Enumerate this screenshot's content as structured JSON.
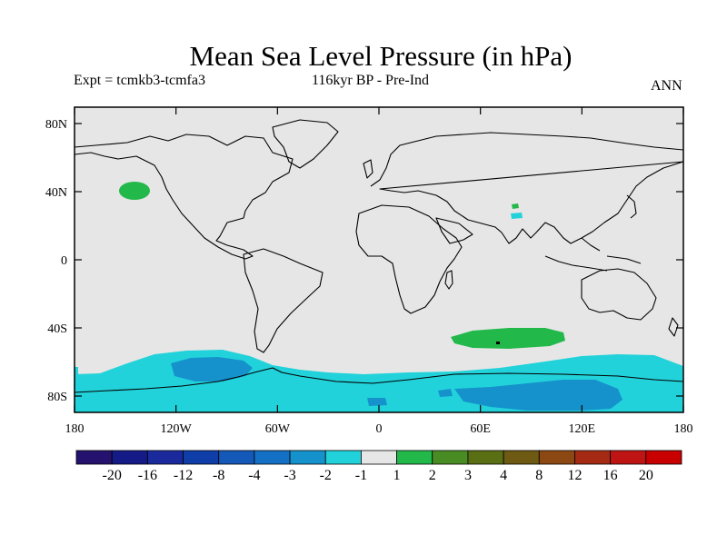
{
  "title": "Mean Sea Level Pressure (in hPa)",
  "subtitle_left": "Expt = tcmkb3-tcmfa3",
  "subtitle_center": "116kyr BP - Pre-Ind",
  "subtitle_right": "ANN",
  "lat_ticks": [
    "80N",
    "40N",
    "0",
    "40S",
    "80S"
  ],
  "lon_ticks": [
    "180",
    "120W",
    "60W",
    "0",
    "60E",
    "120E",
    "180"
  ],
  "colorbar": {
    "labels": [
      "-20",
      "-16",
      "-12",
      "-8",
      "-4",
      "-3",
      "-2",
      "-1",
      "1",
      "2",
      "3",
      "4",
      "8",
      "12",
      "16",
      "20"
    ],
    "colors": [
      "#24126e",
      "#141a86",
      "#1a2a9c",
      "#0f3ea8",
      "#1458b8",
      "#1470c4",
      "#1592cc",
      "#22d2da",
      "#e6e6e6",
      "#22b84a",
      "#4a8c24",
      "#5a6e14",
      "#6e5a12",
      "#8c4812",
      "#a42a14",
      "#be1414",
      "#c80000"
    ]
  },
  "colors": {
    "land_bg": "#e6e6e6",
    "cyan": "#22d2da",
    "blue": "#1592cc",
    "green": "#22b84a"
  }
}
